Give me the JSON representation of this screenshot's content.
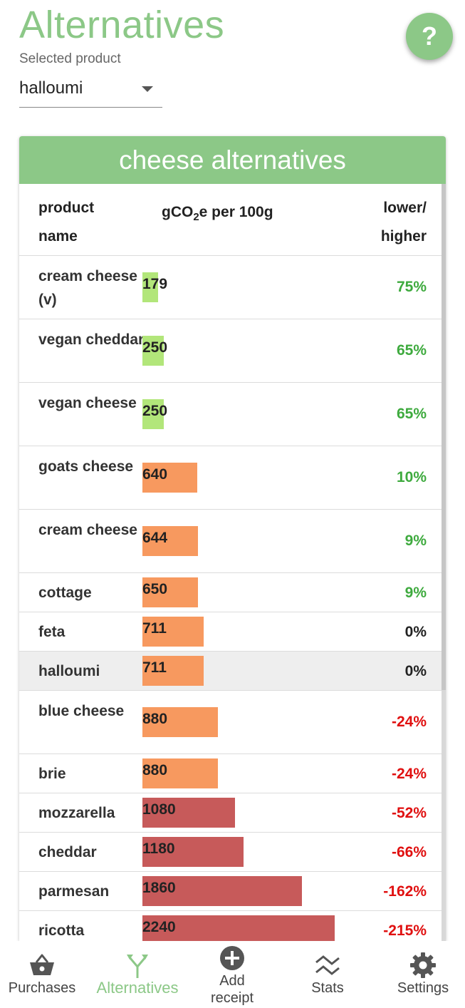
{
  "header": {
    "title": "Alternatives",
    "help_label": "?",
    "selected_label": "Selected product",
    "selected_value": "halloumi"
  },
  "card": {
    "title": "cheese alternatives",
    "columns": {
      "name": "product name",
      "value_prefix": "gCO",
      "value_sub": "2",
      "value_suffix": "e per 100g",
      "ratio": "lower/ higher"
    },
    "max_value": 2240,
    "rows": [
      {
        "name": "cream cheese (v)",
        "value": 179,
        "value_label": "179",
        "ratio": "75%",
        "level": "low",
        "size": "tall"
      },
      {
        "name": "vegan cheddar",
        "value": 250,
        "value_label": "250",
        "ratio": "65%",
        "level": "low",
        "size": "tall"
      },
      {
        "name": "vegan cheese",
        "value": 250,
        "value_label": "250",
        "ratio": "65%",
        "level": "low",
        "size": "tall"
      },
      {
        "name": "goats cheese",
        "value": 640,
        "value_label": "640",
        "ratio": "10%",
        "level": "mid",
        "size": "tall"
      },
      {
        "name": "cream cheese",
        "value": 644,
        "value_label": "644",
        "ratio": "9%",
        "level": "mid",
        "size": "tall"
      },
      {
        "name": "cottage",
        "value": 650,
        "value_label": "650",
        "ratio": "9%",
        "level": "mid",
        "size": "short"
      },
      {
        "name": "feta",
        "value": 711,
        "value_label": "711",
        "ratio": "0%",
        "level": "mid",
        "size": "short"
      },
      {
        "name": "halloumi",
        "value": 711,
        "value_label": "711",
        "ratio": "0%",
        "level": "mid",
        "size": "short",
        "selected": true
      },
      {
        "name": "blue cheese",
        "value": 880,
        "value_label": "880",
        "ratio": "-24%",
        "level": "mid",
        "size": "tall"
      },
      {
        "name": "brie",
        "value": 880,
        "value_label": "880",
        "ratio": "-24%",
        "level": "mid",
        "size": "short"
      },
      {
        "name": "mozzarella",
        "value": 1080,
        "value_label": "1080",
        "ratio": "-52%",
        "level": "high",
        "size": "short"
      },
      {
        "name": "cheddar",
        "value": 1180,
        "value_label": "1180",
        "ratio": "-66%",
        "level": "high",
        "size": "short"
      },
      {
        "name": "parmesan",
        "value": 1860,
        "value_label": "1860",
        "ratio": "-162%",
        "level": "high",
        "size": "short"
      },
      {
        "name": "ricotta",
        "value": 2240,
        "value_label": "2240",
        "ratio": "-215%",
        "level": "high",
        "size": "short"
      }
    ]
  },
  "colors": {
    "accent": "#8cc887",
    "bar_low": "#b2e67a",
    "bar_mid": "#f7995f",
    "bar_high": "#c75a5a",
    "ratio_positive": "#3eaa3e",
    "ratio_zero": "#222222",
    "ratio_negative": "#e01010"
  },
  "nav": {
    "items": [
      {
        "label": "Purchases",
        "icon": "basket-icon"
      },
      {
        "label": "Alternatives",
        "icon": "branch-arrows-icon",
        "active": true
      },
      {
        "label": "Add receipt",
        "icon": "add-circle-icon"
      },
      {
        "label": "Stats",
        "icon": "stats-wave-icon"
      },
      {
        "label": "Settings",
        "icon": "gear-icon"
      }
    ]
  }
}
